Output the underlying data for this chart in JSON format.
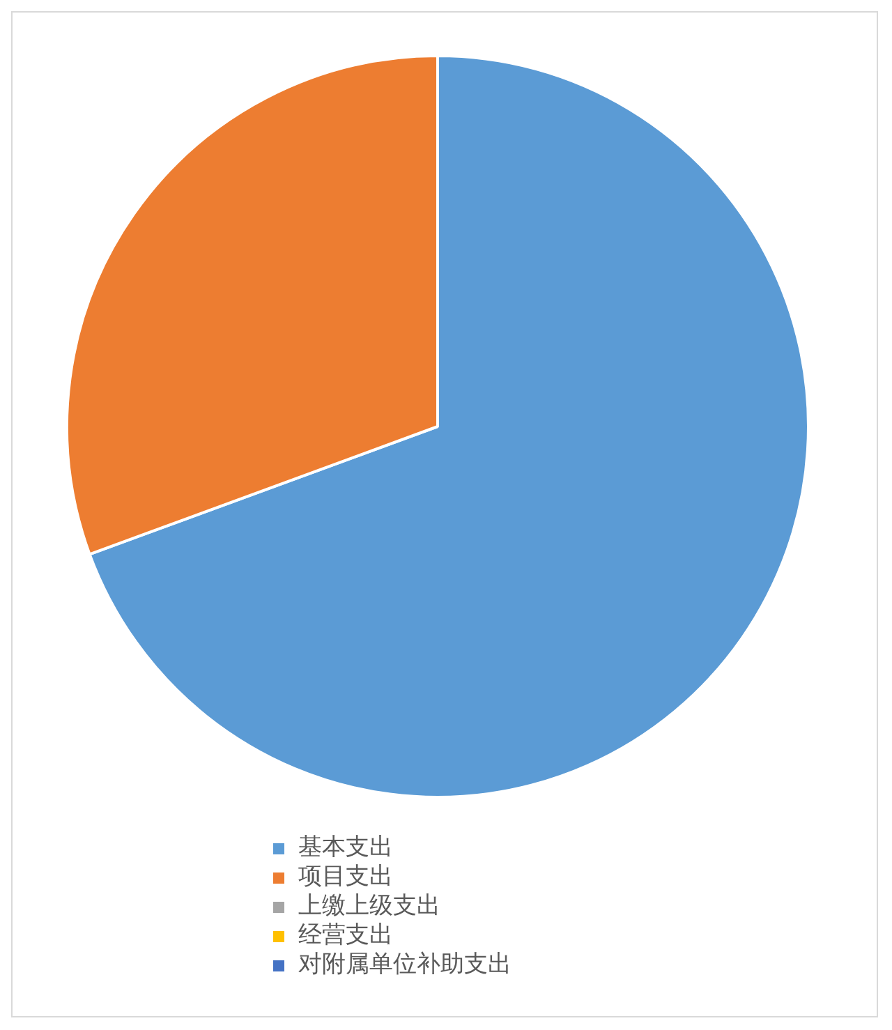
{
  "chart_data": {
    "type": "pie",
    "categories": [
      "基本支出",
      "项目支出",
      "上缴上级支出",
      "经营支出",
      "对附属单位补助支出"
    ],
    "values": [
      69.4,
      30.6,
      0,
      0,
      0
    ],
    "colors": [
      "#5b9bd5",
      "#ed7d31",
      "#a5a5a5",
      "#ffc000",
      "#4472c4"
    ],
    "legend": "bottom"
  }
}
